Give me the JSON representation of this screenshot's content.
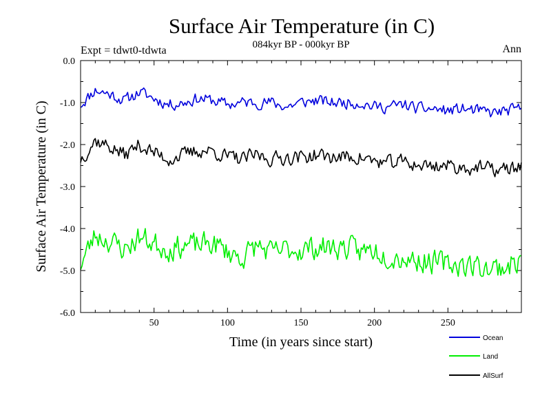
{
  "chart_data": {
    "type": "line",
    "title": "Surface Air Temperature (in C)",
    "subtitle": "084kyr BP - 000kyr BP",
    "experiment_label": "Expt = tdwt0-tdwta",
    "season_label": "Ann",
    "xlabel": "Time (in years since start)",
    "ylabel": "Surface Air Temperature (in C)",
    "xlim": [
      0,
      300
    ],
    "ylim": [
      -6.0,
      0.0
    ],
    "x_ticks": [
      50,
      100,
      150,
      200,
      250
    ],
    "y_ticks": [
      "0.0",
      "-1.0",
      "-2.0",
      "-3.0",
      "-4.0",
      "-5.0",
      "-6.0"
    ],
    "x_tick_labels": [
      "50",
      "100",
      "150",
      "200",
      "250"
    ],
    "legend_position": "bottom-right",
    "series": [
      {
        "name": "Ocean",
        "color": "#0000dd",
        "x": [
          0,
          10,
          20,
          30,
          40,
          50,
          60,
          70,
          80,
          90,
          100,
          110,
          120,
          130,
          140,
          150,
          160,
          170,
          180,
          190,
          200,
          210,
          220,
          230,
          240,
          250,
          260,
          270,
          280,
          290,
          300
        ],
        "values": [
          -1.05,
          -0.7,
          -0.8,
          -0.95,
          -0.75,
          -0.9,
          -1.05,
          -1.0,
          -0.9,
          -0.95,
          -1.05,
          -1.0,
          -1.0,
          -1.0,
          -1.1,
          -1.0,
          -0.95,
          -1.0,
          -1.0,
          -1.0,
          -1.1,
          -1.1,
          -1.05,
          -1.15,
          -1.15,
          -1.2,
          -1.15,
          -1.2,
          -1.25,
          -1.2,
          -1.15
        ],
        "noise": 0.08,
        "seed": 11
      },
      {
        "name": "Land",
        "color": "#00ee00",
        "x": [
          0,
          10,
          20,
          30,
          40,
          50,
          60,
          70,
          80,
          90,
          100,
          110,
          120,
          130,
          140,
          150,
          160,
          170,
          180,
          190,
          200,
          210,
          220,
          230,
          240,
          250,
          260,
          270,
          280,
          290,
          300
        ],
        "values": [
          -4.85,
          -4.15,
          -4.3,
          -4.5,
          -4.2,
          -4.35,
          -4.5,
          -4.4,
          -4.4,
          -4.35,
          -4.55,
          -4.7,
          -4.4,
          -4.6,
          -4.5,
          -4.5,
          -4.45,
          -4.45,
          -4.45,
          -4.55,
          -4.5,
          -4.65,
          -4.7,
          -4.75,
          -4.8,
          -4.85,
          -4.85,
          -4.9,
          -4.95,
          -4.9,
          -4.75
        ],
        "noise": 0.16,
        "seed": 23
      },
      {
        "name": "AllSurf",
        "color": "#000000",
        "x": [
          0,
          10,
          20,
          30,
          40,
          50,
          60,
          70,
          80,
          90,
          100,
          110,
          120,
          130,
          140,
          150,
          160,
          170,
          180,
          190,
          200,
          210,
          220,
          230,
          240,
          250,
          260,
          270,
          280,
          290,
          300
        ],
        "values": [
          -2.35,
          -1.9,
          -2.05,
          -2.25,
          -2.0,
          -2.2,
          -2.35,
          -2.25,
          -2.15,
          -2.15,
          -2.3,
          -2.35,
          -2.25,
          -2.35,
          -2.3,
          -2.3,
          -2.25,
          -2.3,
          -2.3,
          -2.3,
          -2.4,
          -2.45,
          -2.4,
          -2.5,
          -2.5,
          -2.5,
          -2.55,
          -2.55,
          -2.6,
          -2.6,
          -2.5
        ],
        "noise": 0.1,
        "seed": 37
      }
    ]
  }
}
